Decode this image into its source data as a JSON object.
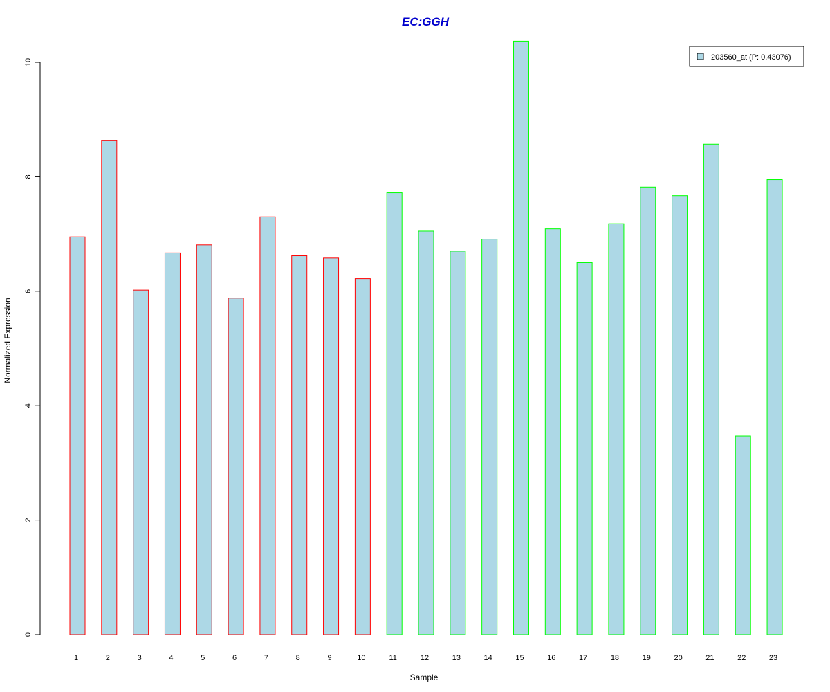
{
  "chart_data": {
    "type": "bar",
    "title": "EC:GGH",
    "xlabel": "Sample",
    "ylabel": "Normalized Expression",
    "categories": [
      "1",
      "2",
      "3",
      "4",
      "5",
      "6",
      "7",
      "8",
      "9",
      "10",
      "11",
      "12",
      "13",
      "14",
      "15",
      "16",
      "17",
      "18",
      "19",
      "20",
      "21",
      "22",
      "23"
    ],
    "series": [
      {
        "name": "203560_at (P: 0.43076)",
        "values": [
          6.95,
          8.63,
          6.02,
          6.67,
          6.81,
          5.88,
          7.3,
          6.62,
          6.58,
          6.22,
          7.72,
          7.05,
          6.7,
          6.91,
          10.37,
          7.09,
          6.5,
          7.18,
          7.82,
          7.67,
          8.57,
          3.47,
          7.95
        ]
      }
    ],
    "group_outline_colors": [
      "#ff0000",
      "#ff0000",
      "#ff0000",
      "#ff0000",
      "#ff0000",
      "#ff0000",
      "#ff0000",
      "#ff0000",
      "#ff0000",
      "#ff0000",
      "#00ff00",
      "#00ff00",
      "#00ff00",
      "#00ff00",
      "#00ff00",
      "#00ff00",
      "#00ff00",
      "#00ff00",
      "#00ff00",
      "#00ff00",
      "#00ff00",
      "#00ff00",
      "#00ff00"
    ],
    "ylim": [
      0,
      10.4
    ],
    "yticks": [
      0,
      2,
      4,
      6,
      8,
      10
    ],
    "grid": false,
    "legend_position": "top-right",
    "colors": {
      "bar_fill": "#add8e6",
      "title": "#0000cd",
      "axis": "#000000"
    }
  }
}
